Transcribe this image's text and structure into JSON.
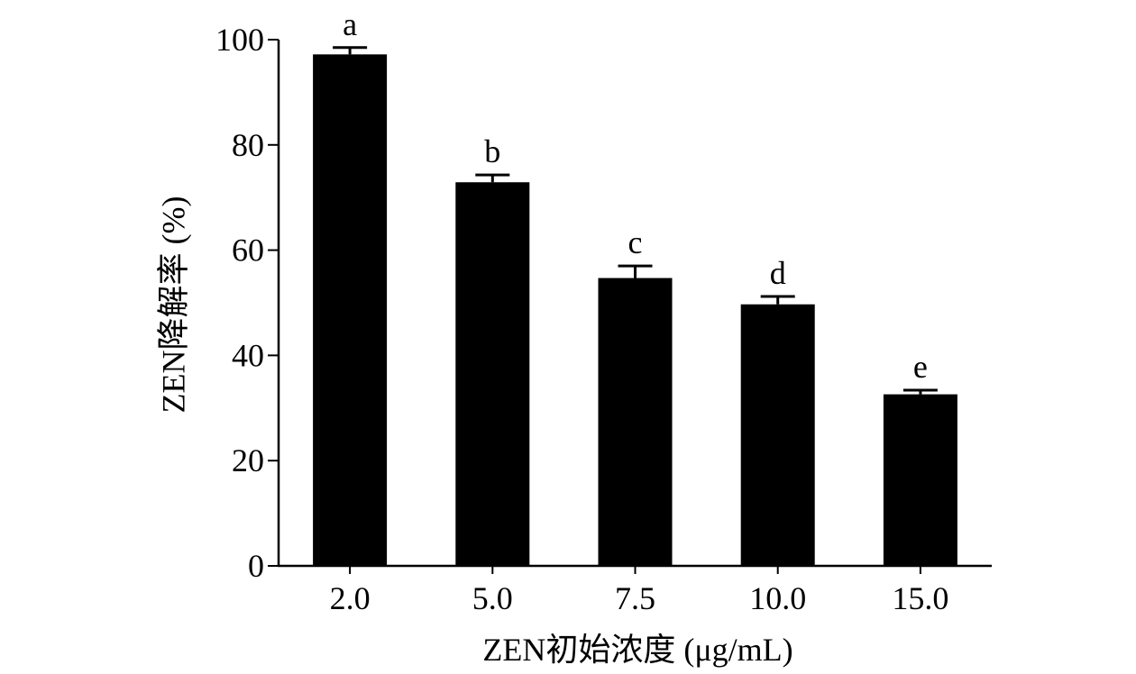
{
  "chart_data": {
    "type": "bar",
    "categories": [
      "2.0",
      "5.0",
      "7.5",
      "10.0",
      "15.0"
    ],
    "values": [
      97.2,
      72.9,
      54.7,
      49.7,
      32.6
    ],
    "error": [
      1.3,
      1.4,
      2.3,
      1.5,
      0.8
    ],
    "significance_labels": [
      "a",
      "b",
      "c",
      "d",
      "e"
    ],
    "xlabel": "ZEN初始浓度 (μg/mL)",
    "ylabel": "ZEN降解率 (%)",
    "ylim": [
      0,
      100
    ],
    "yticks": [
      0,
      20,
      40,
      60,
      80,
      100
    ],
    "bar_color": "#000000",
    "grid": false,
    "legend": "none"
  }
}
